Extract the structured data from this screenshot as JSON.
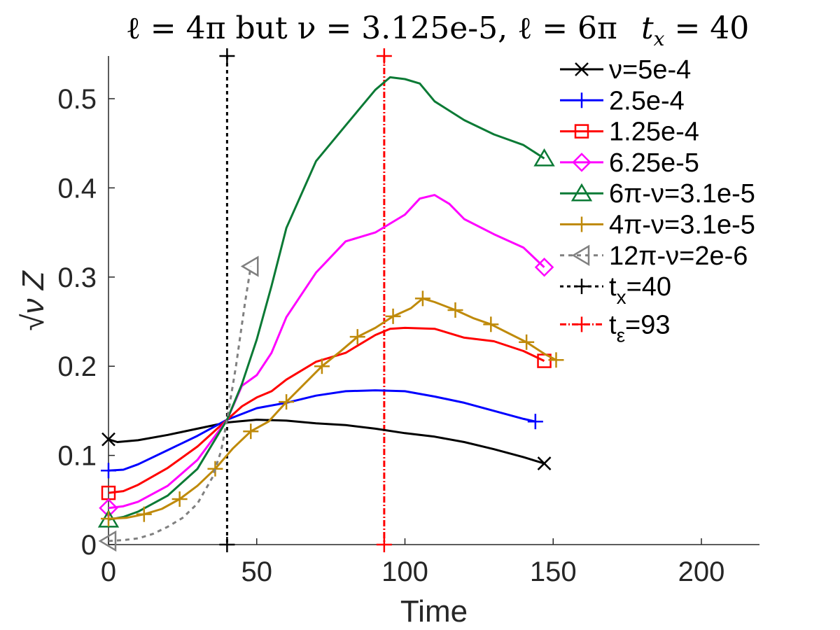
{
  "chart_data": {
    "type": "line",
    "title": "ℓ = 4π but ν = 3.125e-5, ℓ = 6π    t_x = 40",
    "title_parts": {
      "a": "ℓ = 4π but ν = 3.125e-5, ℓ = 6π",
      "b": "t",
      "b_sub": "x",
      "c": " = 40"
    },
    "xlabel": "Time",
    "ylabel": "√ν Z",
    "xlim": [
      -2,
      220
    ],
    "ylim": [
      0,
      0.55
    ],
    "xticks": [
      0,
      50,
      100,
      150,
      200
    ],
    "yticks": [
      0,
      0.1,
      0.2,
      0.3,
      0.4,
      0.5
    ],
    "xtick_labels": [
      "0",
      "50",
      "100",
      "150",
      "200"
    ],
    "ytick_labels": [
      "0",
      "0.1",
      "0.2",
      "0.3",
      "0.4",
      "0.5"
    ],
    "legend_position": "top-right",
    "series": [
      {
        "name": "ν=5e-4",
        "color": "#000000",
        "marker": "x",
        "dash": "",
        "x": [
          0,
          3,
          10,
          20,
          30,
          40,
          50,
          60,
          70,
          80,
          90,
          100,
          110,
          120,
          130,
          140,
          147
        ],
        "y": [
          0.118,
          0.115,
          0.117,
          0.123,
          0.13,
          0.137,
          0.14,
          0.139,
          0.136,
          0.134,
          0.13,
          0.125,
          0.121,
          0.115,
          0.107,
          0.098,
          0.091
        ],
        "markers_at": [
          0,
          147
        ]
      },
      {
        "name": "2.5e-4",
        "color": "#0000ff",
        "marker": "+",
        "dash": "",
        "x": [
          0,
          5,
          10,
          20,
          30,
          40,
          50,
          60,
          70,
          80,
          90,
          100,
          110,
          120,
          130,
          140,
          144
        ],
        "y": [
          0.083,
          0.084,
          0.09,
          0.106,
          0.122,
          0.14,
          0.153,
          0.159,
          0.167,
          0.172,
          0.173,
          0.172,
          0.166,
          0.159,
          0.15,
          0.141,
          0.138
        ],
        "markers_at": [
          0,
          144
        ]
      },
      {
        "name": "1.25e-4",
        "color": "#ff0000",
        "marker": "square",
        "dash": "",
        "x": [
          0,
          5,
          10,
          20,
          30,
          40,
          45,
          50,
          55,
          60,
          70,
          80,
          85,
          90,
          95,
          100,
          110,
          120,
          130,
          140,
          147
        ],
        "y": [
          0.058,
          0.06,
          0.067,
          0.086,
          0.11,
          0.14,
          0.155,
          0.165,
          0.172,
          0.185,
          0.205,
          0.215,
          0.225,
          0.235,
          0.242,
          0.243,
          0.242,
          0.232,
          0.228,
          0.217,
          0.206
        ],
        "markers_at": [
          0,
          147
        ]
      },
      {
        "name": "6.25e-5",
        "color": "#ff00ff",
        "marker": "diamond",
        "dash": "",
        "x": [
          0,
          5,
          10,
          20,
          30,
          40,
          45,
          50,
          55,
          60,
          70,
          80,
          90,
          100,
          105,
          110,
          115,
          120,
          130,
          140,
          147
        ],
        "y": [
          0.041,
          0.043,
          0.048,
          0.066,
          0.095,
          0.14,
          0.178,
          0.19,
          0.215,
          0.255,
          0.305,
          0.34,
          0.35,
          0.37,
          0.388,
          0.392,
          0.382,
          0.365,
          0.348,
          0.333,
          0.311
        ],
        "markers_at": [
          0,
          147
        ]
      },
      {
        "name": "6π-ν=3.1e-5",
        "color": "#0b7a35",
        "marker": "triangle-up",
        "dash": "",
        "x": [
          0,
          5,
          10,
          20,
          30,
          40,
          45,
          50,
          55,
          60,
          70,
          80,
          85,
          90,
          95,
          100,
          105,
          110,
          120,
          130,
          140,
          147
        ],
        "y": [
          0.028,
          0.031,
          0.037,
          0.055,
          0.085,
          0.14,
          0.18,
          0.23,
          0.29,
          0.355,
          0.43,
          0.47,
          0.49,
          0.51,
          0.524,
          0.522,
          0.517,
          0.497,
          0.476,
          0.46,
          0.448,
          0.433
        ],
        "markers_at": [
          0,
          147
        ]
      },
      {
        "name": "4π-ν=3.1e-5",
        "color": "#bf8a0a",
        "marker": "+",
        "dash": "",
        "x": [
          0,
          6,
          12,
          18,
          24,
          30,
          36,
          42,
          48,
          54,
          60,
          66,
          72,
          78,
          84,
          90,
          96,
          102,
          106,
          110,
          117,
          123,
          129,
          135,
          141,
          147,
          151
        ],
        "y": [
          0.029,
          0.03,
          0.034,
          0.04,
          0.051,
          0.066,
          0.085,
          0.108,
          0.127,
          0.138,
          0.16,
          0.18,
          0.2,
          0.216,
          0.233,
          0.243,
          0.256,
          0.265,
          0.276,
          0.272,
          0.263,
          0.254,
          0.247,
          0.237,
          0.227,
          0.214,
          0.207
        ],
        "markers_at": [
          0,
          12,
          24,
          36,
          48,
          60,
          72,
          84,
          96,
          106,
          117,
          129,
          141,
          151
        ]
      },
      {
        "name": "12π-ν=2e-6",
        "color": "#808080",
        "marker": "triangle-left",
        "dash": "6,6",
        "x": [
          0,
          5,
          10,
          15,
          20,
          25,
          30,
          35,
          38,
          40,
          43,
          46,
          48
        ],
        "y": [
          0.004,
          0.005,
          0.007,
          0.012,
          0.02,
          0.03,
          0.046,
          0.075,
          0.105,
          0.14,
          0.2,
          0.27,
          0.312
        ],
        "markers_at": [
          0,
          48
        ]
      }
    ],
    "vlines": [
      {
        "name": "t_x=40",
        "label_main": "t",
        "label_sub": "x",
        "label_rest": "=40",
        "x": 40,
        "color": "#000000",
        "dash": "5,5"
      },
      {
        "name": "t_ε=93",
        "label_main": "t",
        "label_sub": "ε",
        "label_rest": "=93",
        "x": 93,
        "color": "#ff0000",
        "dash": "9,3,2,3"
      }
    ]
  }
}
